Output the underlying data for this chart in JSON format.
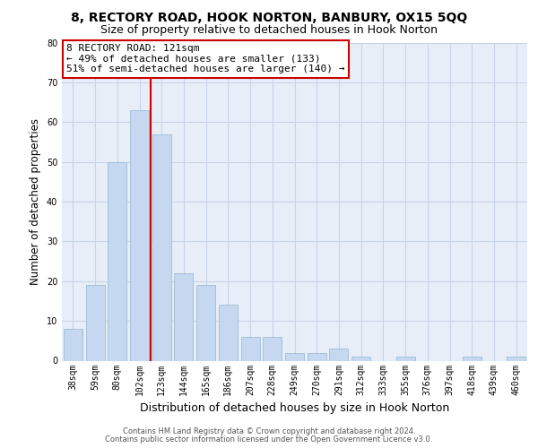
{
  "title1": "8, RECTORY ROAD, HOOK NORTON, BANBURY, OX15 5QQ",
  "title2": "Size of property relative to detached houses in Hook Norton",
  "xlabel": "Distribution of detached houses by size in Hook Norton",
  "ylabel": "Number of detached properties",
  "footer1": "Contains HM Land Registry data © Crown copyright and database right 2024.",
  "footer2": "Contains public sector information licensed under the Open Government Licence v3.0.",
  "categories": [
    "38sqm",
    "59sqm",
    "80sqm",
    "102sqm",
    "123sqm",
    "144sqm",
    "165sqm",
    "186sqm",
    "207sqm",
    "228sqm",
    "249sqm",
    "270sqm",
    "291sqm",
    "312sqm",
    "333sqm",
    "355sqm",
    "376sqm",
    "397sqm",
    "418sqm",
    "439sqm",
    "460sqm"
  ],
  "values": [
    8,
    19,
    50,
    63,
    57,
    22,
    19,
    14,
    6,
    6,
    2,
    2,
    3,
    1,
    0,
    1,
    0,
    0,
    1,
    0,
    1
  ],
  "bar_color": "#c5d8f0",
  "bar_edge_color": "#9bbdd8",
  "vline_color": "#cc0000",
  "vline_x_index": 4,
  "annotation_line1": "8 RECTORY ROAD: 121sqm",
  "annotation_line2": "← 49% of detached houses are smaller (133)",
  "annotation_line3": "51% of semi-detached houses are larger (140) →",
  "ylim_max": 80,
  "yticks": [
    0,
    10,
    20,
    30,
    40,
    50,
    60,
    70,
    80
  ],
  "grid_color": "#c8d4e8",
  "bg_color": "#e8eef8",
  "title1_fontsize": 10,
  "title2_fontsize": 9,
  "tick_fontsize": 7,
  "ann_fontsize": 8,
  "ylabel_fontsize": 8.5,
  "xlabel_fontsize": 9
}
